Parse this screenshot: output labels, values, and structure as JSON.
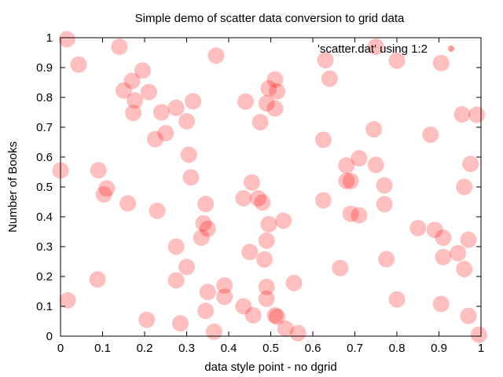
{
  "chart_data": {
    "type": "scatter",
    "title": "Simple demo of scatter data conversion to grid data",
    "xlabel": "data style point - no dgrid",
    "ylabel": "Number of Books",
    "xlim": [
      0,
      1
    ],
    "ylim": [
      0,
      1
    ],
    "x_ticks": [
      "0",
      "0.1",
      "0.2",
      "0.3",
      "0.4",
      "0.5",
      "0.6",
      "0.7",
      "0.8",
      "0.9",
      "1"
    ],
    "y_ticks": [
      "0",
      "0.1",
      "0.2",
      "0.3",
      "0.4",
      "0.5",
      "0.6",
      "0.7",
      "0.8",
      "0.9",
      "1"
    ],
    "grid": false,
    "legend_position": "top-right",
    "series": [
      {
        "name": "'scatter.dat' using 1:2",
        "color": "#ff0000",
        "opacity": 0.25,
        "marker": "filled-circle",
        "points": [
          [
            0.015,
            0.995
          ],
          [
            0.043,
            0.91
          ],
          [
            0.14,
            0.97
          ],
          [
            0.37,
            0.94
          ],
          [
            0.195,
            0.89
          ],
          [
            0.17,
            0.855
          ],
          [
            0.15,
            0.823
          ],
          [
            0.21,
            0.818
          ],
          [
            0.177,
            0.79
          ],
          [
            0.315,
            0.787
          ],
          [
            0.275,
            0.765
          ],
          [
            0.24,
            0.75
          ],
          [
            0.173,
            0.748
          ],
          [
            0.3,
            0.72
          ],
          [
            0.25,
            0.68
          ],
          [
            0.225,
            0.66
          ],
          [
            0.305,
            0.608
          ],
          [
            0.31,
            0.532
          ],
          [
            0.0,
            0.555
          ],
          [
            0.09,
            0.556
          ],
          [
            0.11,
            0.495
          ],
          [
            0.103,
            0.475
          ],
          [
            0.16,
            0.445
          ],
          [
            0.23,
            0.42
          ],
          [
            0.345,
            0.443
          ],
          [
            0.34,
            0.378
          ],
          [
            0.35,
            0.36
          ],
          [
            0.335,
            0.33
          ],
          [
            0.275,
            0.3
          ],
          [
            0.3,
            0.232
          ],
          [
            0.275,
            0.187
          ],
          [
            0.088,
            0.19
          ],
          [
            0.017,
            0.12
          ],
          [
            0.205,
            0.055
          ],
          [
            0.285,
            0.043
          ],
          [
            0.345,
            0.085
          ],
          [
            0.365,
            0.015
          ],
          [
            0.35,
            0.148
          ],
          [
            0.39,
            0.17
          ],
          [
            0.39,
            0.132
          ],
          [
            0.435,
            0.1
          ],
          [
            0.458,
            0.07
          ],
          [
            0.49,
            0.125
          ],
          [
            0.49,
            0.165
          ],
          [
            0.51,
            0.07
          ],
          [
            0.515,
            0.065
          ],
          [
            0.535,
            0.025
          ],
          [
            0.555,
            0.178
          ],
          [
            0.565,
            0.01
          ],
          [
            0.485,
            0.257
          ],
          [
            0.45,
            0.282
          ],
          [
            0.49,
            0.32
          ],
          [
            0.495,
            0.375
          ],
          [
            0.53,
            0.387
          ],
          [
            0.435,
            0.462
          ],
          [
            0.455,
            0.515
          ],
          [
            0.47,
            0.462
          ],
          [
            0.48,
            0.448
          ],
          [
            0.44,
            0.786
          ],
          [
            0.475,
            0.717
          ],
          [
            0.49,
            0.78
          ],
          [
            0.495,
            0.83
          ],
          [
            0.51,
            0.86
          ],
          [
            0.515,
            0.82
          ],
          [
            0.51,
            0.763
          ],
          [
            0.63,
            0.925
          ],
          [
            0.64,
            0.863
          ],
          [
            0.75,
            0.97
          ],
          [
            0.8,
            0.923
          ],
          [
            0.905,
            0.915
          ],
          [
            0.745,
            0.693
          ],
          [
            0.625,
            0.658
          ],
          [
            0.71,
            0.596
          ],
          [
            0.68,
            0.572
          ],
          [
            0.75,
            0.574
          ],
          [
            0.68,
            0.52
          ],
          [
            0.69,
            0.52
          ],
          [
            0.77,
            0.505
          ],
          [
            0.625,
            0.455
          ],
          [
            0.69,
            0.41
          ],
          [
            0.71,
            0.405
          ],
          [
            0.77,
            0.442
          ],
          [
            0.665,
            0.228
          ],
          [
            0.775,
            0.258
          ],
          [
            0.8,
            0.123
          ],
          [
            0.85,
            0.362
          ],
          [
            0.88,
            0.675
          ],
          [
            0.955,
            0.743
          ],
          [
            0.99,
            0.742
          ],
          [
            0.975,
            0.577
          ],
          [
            0.96,
            0.5
          ],
          [
            0.89,
            0.356
          ],
          [
            0.91,
            0.33
          ],
          [
            0.97,
            0.323
          ],
          [
            0.91,
            0.265
          ],
          [
            0.945,
            0.278
          ],
          [
            0.96,
            0.225
          ],
          [
            0.905,
            0.108
          ],
          [
            0.97,
            0.068
          ],
          [
            0.995,
            0.005
          ]
        ]
      }
    ]
  }
}
